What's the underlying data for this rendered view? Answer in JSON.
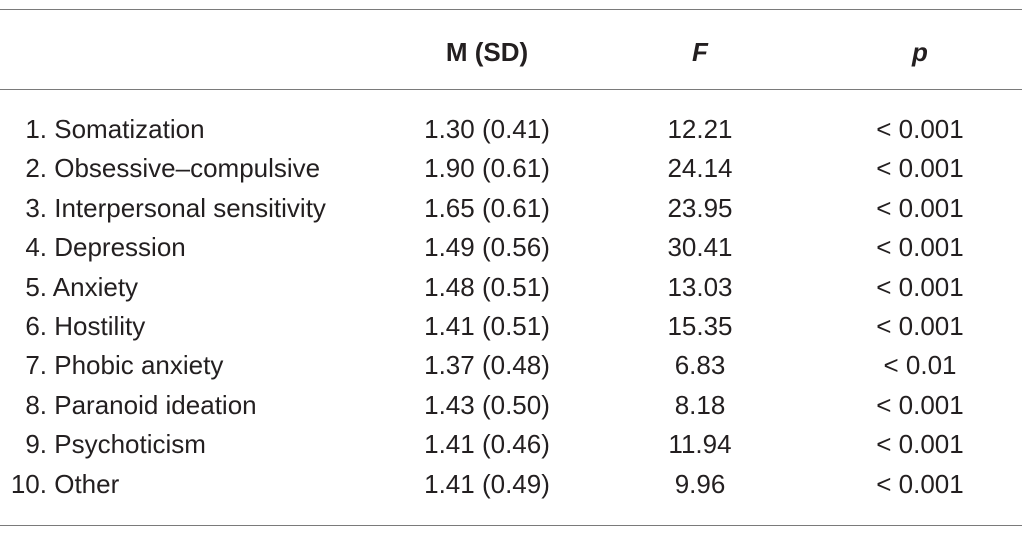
{
  "table": {
    "headers": {
      "msd": "M (SD)",
      "f": "F",
      "p": "p"
    },
    "rows": [
      {
        "num": "1.",
        "label": "Somatization",
        "msd": "1.30 (0.41)",
        "f": "12.21",
        "p": "< 0.001"
      },
      {
        "num": "2.",
        "label": "Obsessive–compulsive",
        "msd": "1.90 (0.61)",
        "f": "24.14",
        "p": "< 0.001"
      },
      {
        "num": "3.",
        "label": "Interpersonal sensitivity",
        "msd": "1.65 (0.61)",
        "f": "23.95",
        "p": "< 0.001"
      },
      {
        "num": "4.",
        "label": "Depression",
        "msd": "1.49 (0.56)",
        "f": "30.41",
        "p": "< 0.001"
      },
      {
        "num": "5.",
        "label": "Anxiety",
        "msd": "1.48 (0.51)",
        "f": "13.03",
        "p": "< 0.001"
      },
      {
        "num": "6.",
        "label": "Hostility",
        "msd": "1.41 (0.51)",
        "f": "15.35",
        "p": "< 0.001"
      },
      {
        "num": "7.",
        "label": "Phobic anxiety",
        "msd": "1.37 (0.48)",
        "f": "6.83",
        "p": "< 0.01"
      },
      {
        "num": "8.",
        "label": "Paranoid ideation",
        "msd": "1.43 (0.50)",
        "f": "8.18",
        "p": "< 0.001"
      },
      {
        "num": "9.",
        "label": "Psychoticism",
        "msd": "1.41 (0.46)",
        "f": "11.94",
        "p": "< 0.001"
      },
      {
        "num": "10.",
        "label": "Other",
        "msd": "1.41 (0.49)",
        "f": "9.96",
        "p": "< 0.001"
      }
    ]
  }
}
